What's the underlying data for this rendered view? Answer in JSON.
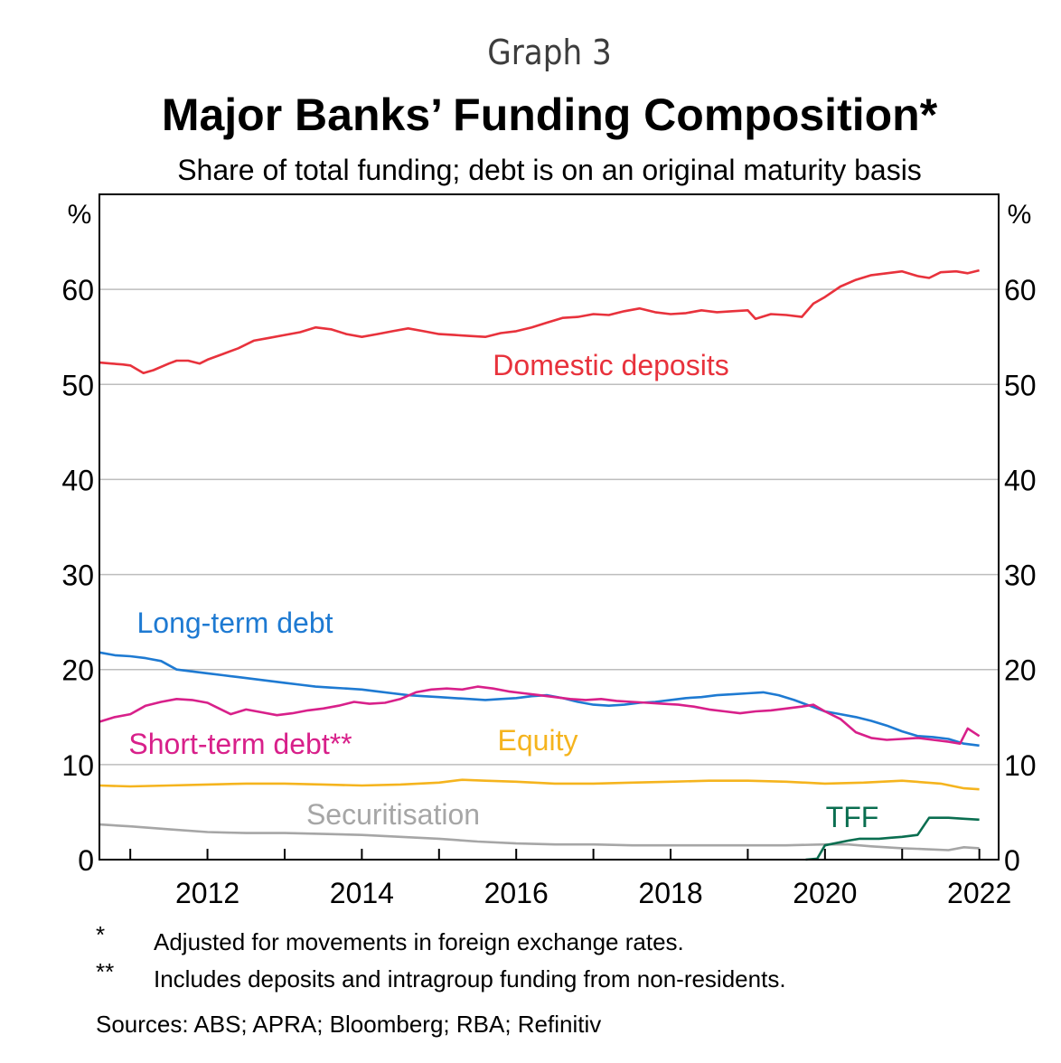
{
  "header": {
    "graph_number": "Graph 3",
    "title": "Major Banks’ Funding Composition*",
    "subtitle": "Share of total funding; debt is on an original maturity basis"
  },
  "axis": {
    "left_unit": "%",
    "right_unit": "%"
  },
  "chart_data": {
    "type": "line",
    "title": "Major Banks’ Funding Composition*",
    "subtitle": "Share of total funding; debt is on an original maturity basis",
    "xlabel": "",
    "ylabel": "%",
    "xlim": [
      2010.6,
      2022.25
    ],
    "ylim": [
      0,
      70
    ],
    "yticks": [
      0,
      10,
      20,
      30,
      40,
      50,
      60
    ],
    "xticks": [
      2012,
      2014,
      2016,
      2018,
      2020,
      2022
    ],
    "xtick_labels": [
      "2012",
      "2014",
      "2016",
      "2018",
      "2020",
      "2022"
    ],
    "ytick_labels": [
      "0",
      "10",
      "20",
      "30",
      "40",
      "50",
      "60"
    ],
    "grid": true,
    "series": [
      {
        "name": "Domestic deposits",
        "color": "#e8323c",
        "x": [
          2010.6,
          2010.75,
          2010.9,
          2011.0,
          2011.17,
          2011.3,
          2011.5,
          2011.6,
          2011.75,
          2011.9,
          2012.0,
          2012.2,
          2012.4,
          2012.6,
          2012.8,
          2013.0,
          2013.2,
          2013.4,
          2013.6,
          2013.8,
          2014.0,
          2014.2,
          2014.4,
          2014.6,
          2014.8,
          2015.0,
          2015.2,
          2015.4,
          2015.6,
          2015.8,
          2016.0,
          2016.2,
          2016.4,
          2016.6,
          2016.8,
          2017.0,
          2017.2,
          2017.4,
          2017.6,
          2017.8,
          2018.0,
          2018.2,
          2018.4,
          2018.6,
          2018.8,
          2019.0,
          2019.1,
          2019.3,
          2019.5,
          2019.7,
          2019.85,
          2020.0,
          2020.2,
          2020.4,
          2020.6,
          2020.8,
          2021.0,
          2021.2,
          2021.35,
          2021.5,
          2021.7,
          2021.85,
          2022.0
        ],
        "values": [
          52.3,
          52.2,
          52.1,
          52.0,
          51.2,
          51.5,
          52.2,
          52.5,
          52.5,
          52.2,
          52.6,
          53.2,
          53.8,
          54.6,
          54.9,
          55.2,
          55.5,
          56.0,
          55.8,
          55.3,
          55.0,
          55.3,
          55.6,
          55.9,
          55.6,
          55.3,
          55.2,
          55.1,
          55.0,
          55.4,
          55.6,
          56.0,
          56.5,
          57.0,
          57.1,
          57.4,
          57.3,
          57.7,
          58.0,
          57.6,
          57.4,
          57.5,
          57.8,
          57.6,
          57.7,
          57.8,
          56.9,
          57.4,
          57.3,
          57.1,
          58.5,
          59.2,
          60.3,
          61.0,
          61.5,
          61.7,
          61.9,
          61.4,
          61.2,
          61.8,
          61.9,
          61.7,
          62.0
        ]
      },
      {
        "name": "Long-term debt",
        "color": "#1e7ad2",
        "x": [
          2010.6,
          2010.8,
          2011.0,
          2011.2,
          2011.4,
          2011.6,
          2011.8,
          2012.0,
          2012.2,
          2012.4,
          2012.6,
          2012.8,
          2013.0,
          2013.2,
          2013.4,
          2013.6,
          2013.8,
          2014.0,
          2014.2,
          2014.4,
          2014.6,
          2014.8,
          2015.0,
          2015.2,
          2015.4,
          2015.6,
          2015.8,
          2016.0,
          2016.2,
          2016.4,
          2016.6,
          2016.8,
          2017.0,
          2017.2,
          2017.4,
          2017.6,
          2017.8,
          2018.0,
          2018.2,
          2018.4,
          2018.6,
          2018.8,
          2019.0,
          2019.2,
          2019.4,
          2019.6,
          2019.8,
          2020.0,
          2020.2,
          2020.4,
          2020.6,
          2020.8,
          2021.0,
          2021.2,
          2021.4,
          2021.6,
          2021.8,
          2022.0
        ],
        "values": [
          21.8,
          21.5,
          21.4,
          21.2,
          20.9,
          20.0,
          19.8,
          19.6,
          19.4,
          19.2,
          19.0,
          18.8,
          18.6,
          18.4,
          18.2,
          18.1,
          18.0,
          17.9,
          17.7,
          17.5,
          17.3,
          17.2,
          17.1,
          17.0,
          16.9,
          16.8,
          16.9,
          17.0,
          17.2,
          17.3,
          17.0,
          16.6,
          16.3,
          16.2,
          16.3,
          16.5,
          16.6,
          16.8,
          17.0,
          17.1,
          17.3,
          17.4,
          17.5,
          17.6,
          17.3,
          16.8,
          16.2,
          15.6,
          15.3,
          15.0,
          14.6,
          14.1,
          13.5,
          13.0,
          12.9,
          12.7,
          12.2,
          12.0
        ]
      },
      {
        "name": "Short-term debt**",
        "color": "#d8208a",
        "x": [
          2010.6,
          2010.8,
          2011.0,
          2011.2,
          2011.4,
          2011.6,
          2011.8,
          2012.0,
          2012.1,
          2012.3,
          2012.5,
          2012.7,
          2012.9,
          2013.1,
          2013.3,
          2013.5,
          2013.7,
          2013.9,
          2014.1,
          2014.3,
          2014.5,
          2014.7,
          2014.9,
          2015.1,
          2015.3,
          2015.5,
          2015.7,
          2015.9,
          2016.1,
          2016.3,
          2016.5,
          2016.7,
          2016.9,
          2017.1,
          2017.3,
          2017.5,
          2017.7,
          2017.9,
          2018.1,
          2018.3,
          2018.5,
          2018.7,
          2018.9,
          2019.1,
          2019.3,
          2019.5,
          2019.7,
          2019.85,
          2020.0,
          2020.2,
          2020.4,
          2020.6,
          2020.8,
          2021.0,
          2021.2,
          2021.4,
          2021.6,
          2021.75,
          2021.85,
          2022.0
        ],
        "values": [
          14.5,
          15.0,
          15.3,
          16.2,
          16.6,
          16.9,
          16.8,
          16.5,
          16.1,
          15.3,
          15.8,
          15.5,
          15.2,
          15.4,
          15.7,
          15.9,
          16.2,
          16.6,
          16.4,
          16.5,
          16.9,
          17.6,
          17.9,
          18.0,
          17.9,
          18.2,
          18.0,
          17.7,
          17.5,
          17.3,
          17.1,
          16.9,
          16.8,
          16.9,
          16.7,
          16.6,
          16.5,
          16.4,
          16.3,
          16.1,
          15.8,
          15.6,
          15.4,
          15.6,
          15.7,
          15.9,
          16.1,
          16.3,
          15.6,
          14.8,
          13.4,
          12.8,
          12.6,
          12.7,
          12.8,
          12.6,
          12.4,
          12.2,
          13.8,
          13.0
        ]
      },
      {
        "name": "Equity",
        "color": "#f5b41e",
        "x": [
          2010.6,
          2011.0,
          2011.5,
          2012.0,
          2012.5,
          2013.0,
          2013.5,
          2014.0,
          2014.5,
          2015.0,
          2015.3,
          2015.6,
          2016.0,
          2016.5,
          2017.0,
          2017.5,
          2018.0,
          2018.5,
          2019.0,
          2019.5,
          2020.0,
          2020.5,
          2021.0,
          2021.5,
          2021.8,
          2022.0
        ],
        "values": [
          7.8,
          7.7,
          7.8,
          7.9,
          8.0,
          8.0,
          7.9,
          7.8,
          7.9,
          8.1,
          8.4,
          8.3,
          8.2,
          8.0,
          8.0,
          8.1,
          8.2,
          8.3,
          8.3,
          8.2,
          8.0,
          8.1,
          8.3,
          8.0,
          7.5,
          7.4
        ]
      },
      {
        "name": "Securitisation",
        "color": "#a6a6a6",
        "x": [
          2010.6,
          2011.0,
          2011.5,
          2012.0,
          2012.5,
          2013.0,
          2013.5,
          2014.0,
          2014.5,
          2015.0,
          2015.5,
          2016.0,
          2016.5,
          2017.0,
          2017.5,
          2018.0,
          2018.5,
          2019.0,
          2019.5,
          2020.0,
          2020.3,
          2020.6,
          2021.0,
          2021.3,
          2021.6,
          2021.8,
          2022.0
        ],
        "values": [
          3.7,
          3.5,
          3.2,
          2.9,
          2.8,
          2.8,
          2.7,
          2.6,
          2.4,
          2.2,
          1.9,
          1.7,
          1.6,
          1.6,
          1.5,
          1.5,
          1.5,
          1.5,
          1.5,
          1.6,
          1.6,
          1.4,
          1.2,
          1.1,
          1.0,
          1.3,
          1.2
        ]
      },
      {
        "name": "TFF",
        "color": "#0a6e50",
        "x": [
          2019.75,
          2019.9,
          2020.0,
          2020.3,
          2020.45,
          2020.6,
          2020.7,
          2020.85,
          2021.0,
          2021.2,
          2021.35,
          2021.6,
          2021.8,
          2022.0
        ],
        "values": [
          0.0,
          0.1,
          1.5,
          2.0,
          2.2,
          2.2,
          2.2,
          2.3,
          2.4,
          2.6,
          4.4,
          4.4,
          4.3,
          4.2
        ]
      }
    ],
    "annotations": [
      {
        "text": "Domestic deposits",
        "series": "Domestic deposits"
      },
      {
        "text": "Long-term debt",
        "series": "Long-term debt"
      },
      {
        "text": "Short-term debt**",
        "series": "Short-term debt**"
      },
      {
        "text": "Equity",
        "series": "Equity"
      },
      {
        "text": "Securitisation",
        "series": "Securitisation"
      },
      {
        "text": "TFF",
        "series": "TFF"
      }
    ]
  },
  "footnotes": [
    {
      "mark": "*",
      "text": "Adjusted for movements in foreign exchange rates."
    },
    {
      "mark": "**",
      "text": "Includes deposits and intragroup funding from non-residents."
    }
  ],
  "sources": "Sources: ABS; APRA; Bloomberg; RBA; Refinitiv"
}
